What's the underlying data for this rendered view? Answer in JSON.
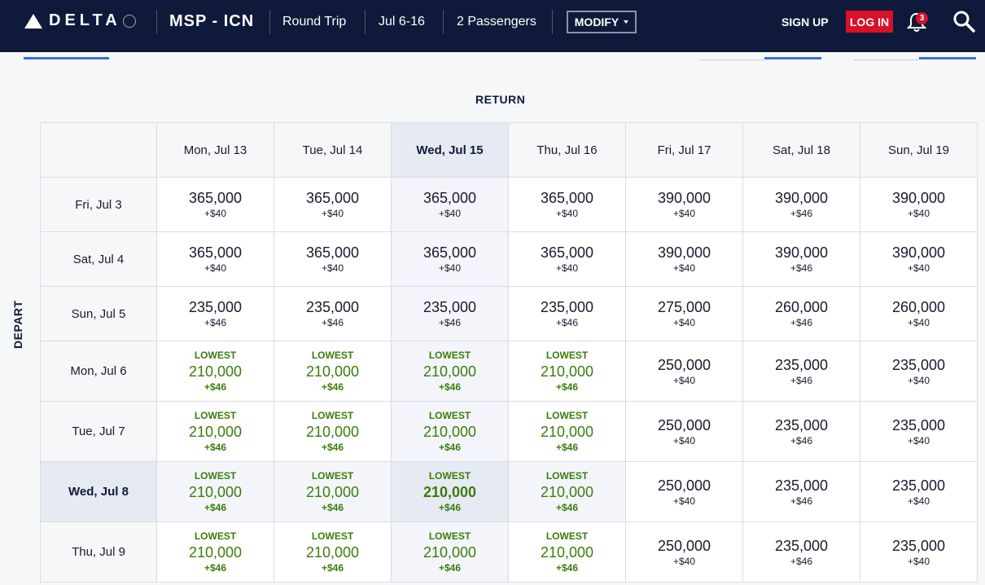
{
  "header": {
    "brand": "DELTA",
    "route": "MSP - ICN",
    "trip_type": "Round Trip",
    "dates": "Jul 6-16",
    "passengers": "2 Passengers",
    "modify_label": "MODIFY",
    "signup_label": "SIGN UP",
    "login_label": "LOG IN",
    "notification_count": "3",
    "colors": {
      "bar": "#0f1a3a",
      "login": "#d8102a",
      "lowest": "#3a7d0a"
    }
  },
  "grid": {
    "return_label": "RETURN",
    "depart_label": "DEPART",
    "lowest_label": "LOWEST",
    "return_dates": [
      "Mon, Jul 13",
      "Tue, Jul 14",
      "Wed, Jul 15",
      "Thu, Jul 16",
      "Fri, Jul 17",
      "Sat, Jul 18",
      "Sun, Jul 19"
    ],
    "selected_return": "Wed, Jul 15",
    "selected_depart": "Wed, Jul 8",
    "rows": [
      {
        "depart": "Fri, Jul 3",
        "cells": [
          {
            "miles": "365,000",
            "fee": "+$40",
            "lowest": false
          },
          {
            "miles": "365,000",
            "fee": "+$40",
            "lowest": false
          },
          {
            "miles": "365,000",
            "fee": "+$40",
            "lowest": false
          },
          {
            "miles": "365,000",
            "fee": "+$40",
            "lowest": false
          },
          {
            "miles": "390,000",
            "fee": "+$40",
            "lowest": false
          },
          {
            "miles": "390,000",
            "fee": "+$46",
            "lowest": false
          },
          {
            "miles": "390,000",
            "fee": "+$40",
            "lowest": false
          }
        ]
      },
      {
        "depart": "Sat, Jul 4",
        "cells": [
          {
            "miles": "365,000",
            "fee": "+$40",
            "lowest": false
          },
          {
            "miles": "365,000",
            "fee": "+$40",
            "lowest": false
          },
          {
            "miles": "365,000",
            "fee": "+$40",
            "lowest": false
          },
          {
            "miles": "365,000",
            "fee": "+$40",
            "lowest": false
          },
          {
            "miles": "390,000",
            "fee": "+$40",
            "lowest": false
          },
          {
            "miles": "390,000",
            "fee": "+$46",
            "lowest": false
          },
          {
            "miles": "390,000",
            "fee": "+$40",
            "lowest": false
          }
        ]
      },
      {
        "depart": "Sun, Jul 5",
        "cells": [
          {
            "miles": "235,000",
            "fee": "+$46",
            "lowest": false
          },
          {
            "miles": "235,000",
            "fee": "+$46",
            "lowest": false
          },
          {
            "miles": "235,000",
            "fee": "+$46",
            "lowest": false
          },
          {
            "miles": "235,000",
            "fee": "+$46",
            "lowest": false
          },
          {
            "miles": "275,000",
            "fee": "+$40",
            "lowest": false
          },
          {
            "miles": "260,000",
            "fee": "+$46",
            "lowest": false
          },
          {
            "miles": "260,000",
            "fee": "+$40",
            "lowest": false
          }
        ]
      },
      {
        "depart": "Mon, Jul 6",
        "cells": [
          {
            "miles": "210,000",
            "fee": "+$46",
            "lowest": true
          },
          {
            "miles": "210,000",
            "fee": "+$46",
            "lowest": true
          },
          {
            "miles": "210,000",
            "fee": "+$46",
            "lowest": true
          },
          {
            "miles": "210,000",
            "fee": "+$46",
            "lowest": true
          },
          {
            "miles": "250,000",
            "fee": "+$40",
            "lowest": false
          },
          {
            "miles": "235,000",
            "fee": "+$46",
            "lowest": false
          },
          {
            "miles": "235,000",
            "fee": "+$40",
            "lowest": false
          }
        ]
      },
      {
        "depart": "Tue, Jul 7",
        "cells": [
          {
            "miles": "210,000",
            "fee": "+$46",
            "lowest": true
          },
          {
            "miles": "210,000",
            "fee": "+$46",
            "lowest": true
          },
          {
            "miles": "210,000",
            "fee": "+$46",
            "lowest": true
          },
          {
            "miles": "210,000",
            "fee": "+$46",
            "lowest": true
          },
          {
            "miles": "250,000",
            "fee": "+$40",
            "lowest": false
          },
          {
            "miles": "235,000",
            "fee": "+$46",
            "lowest": false
          },
          {
            "miles": "235,000",
            "fee": "+$40",
            "lowest": false
          }
        ]
      },
      {
        "depart": "Wed, Jul 8",
        "cells": [
          {
            "miles": "210,000",
            "fee": "+$46",
            "lowest": true
          },
          {
            "miles": "210,000",
            "fee": "+$46",
            "lowest": true
          },
          {
            "miles": "210,000",
            "fee": "+$46",
            "lowest": true
          },
          {
            "miles": "210,000",
            "fee": "+$46",
            "lowest": true
          },
          {
            "miles": "250,000",
            "fee": "+$40",
            "lowest": false
          },
          {
            "miles": "235,000",
            "fee": "+$46",
            "lowest": false
          },
          {
            "miles": "235,000",
            "fee": "+$40",
            "lowest": false
          }
        ]
      },
      {
        "depart": "Thu, Jul 9",
        "cells": [
          {
            "miles": "210,000",
            "fee": "+$46",
            "lowest": true
          },
          {
            "miles": "210,000",
            "fee": "+$46",
            "lowest": true
          },
          {
            "miles": "210,000",
            "fee": "+$46",
            "lowest": true
          },
          {
            "miles": "210,000",
            "fee": "+$46",
            "lowest": true
          },
          {
            "miles": "250,000",
            "fee": "+$40",
            "lowest": false
          },
          {
            "miles": "235,000",
            "fee": "+$46",
            "lowest": false
          },
          {
            "miles": "235,000",
            "fee": "+$40",
            "lowest": false
          }
        ]
      }
    ]
  }
}
